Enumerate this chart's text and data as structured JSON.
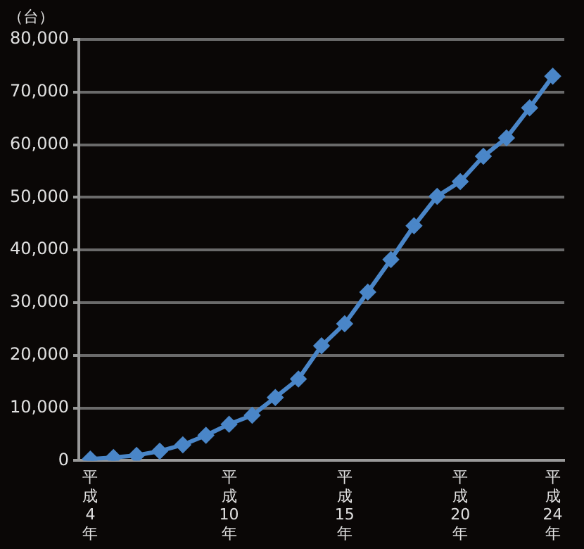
{
  "chart_data": {
    "type": "line",
    "ylabel": "（台）",
    "categories": [
      "平成4年",
      null,
      null,
      null,
      null,
      null,
      "平成10年",
      null,
      null,
      null,
      null,
      "平成15年",
      null,
      null,
      null,
      null,
      "平成20年",
      null,
      null,
      null,
      "平成24年"
    ],
    "series": [
      {
        "color": "#4a86c8",
        "values": [
          300,
          600,
          1000,
          1800,
          3000,
          4800,
          6900,
          8600,
          12000,
          15500,
          21800,
          26000,
          32000,
          38200,
          44600,
          50200,
          53000,
          57800,
          61300,
          67000,
          73000
        ]
      }
    ],
    "ylim": [
      0,
      80000
    ],
    "yticks": [
      0,
      {
        "value": 10000,
        "label": "10,000"
      },
      {
        "value": 20000,
        "label": "20,000"
      },
      {
        "value": 30000,
        "label": "30,000"
      },
      {
        "value": 40000,
        "label": "40,000"
      },
      {
        "value": 50000,
        "label": "50,000"
      },
      {
        "value": 60000,
        "label": "60,000"
      },
      {
        "value": 70000,
        "label": "70,000"
      },
      {
        "value": 80000,
        "label": "80,000"
      }
    ],
    "grid": "y",
    "legend": false,
    "marker": "diamond",
    "line_style": "solid"
  }
}
